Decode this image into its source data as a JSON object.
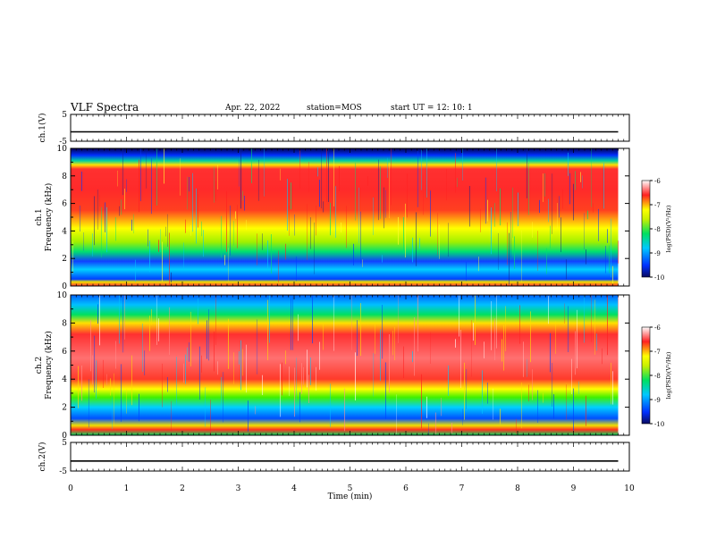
{
  "header": {
    "title": "VLF Spectra",
    "date": "Apr. 22, 2022",
    "station": "station=MOS",
    "start_ut": "start  UT =   12: 10: 1"
  },
  "chart_data": [
    {
      "type": "line",
      "name": "ch1-waveform",
      "ylabel": "ch.1(V)",
      "ylim": [
        -5,
        5
      ],
      "yticks": [
        "5",
        "-5"
      ],
      "xlim": [
        0,
        10
      ],
      "level": -1.5
    },
    {
      "type": "heatmap",
      "name": "ch1-spectrogram",
      "ylabel": "ch.1\nFrequency (kHz)",
      "ylim": [
        0,
        10
      ],
      "yticks": [
        "0",
        "2",
        "4",
        "6",
        "8",
        "10"
      ],
      "xlim": [
        0,
        10
      ],
      "data_end_min": 9.8,
      "colorbar": {
        "label": "log(PSD)(V²/Hz)",
        "range": [
          -10,
          -6
        ],
        "ticks": [
          "-6",
          "-7",
          "-8",
          "-9",
          "-10"
        ]
      }
    },
    {
      "type": "heatmap",
      "name": "ch2-spectrogram",
      "ylabel": "ch.2\nFrequency (kHz)",
      "ylim": [
        0,
        10
      ],
      "yticks": [
        "0",
        "2",
        "4",
        "6",
        "8",
        "10"
      ],
      "xlim": [
        0,
        10
      ],
      "data_end_min": 9.8,
      "colorbar": {
        "label": "log(PSD)(V²/Hz)",
        "range": [
          -10,
          -6
        ],
        "ticks": [
          "-6",
          "-7",
          "-8",
          "-9",
          "-10"
        ]
      }
    },
    {
      "type": "line",
      "name": "ch2-waveform",
      "ylabel": "ch.2(V)",
      "ylim": [
        -5,
        5
      ],
      "yticks": [
        "5",
        "-5"
      ],
      "xlim": [
        0,
        10
      ],
      "level": -1.5
    }
  ],
  "xaxis": {
    "label": "Time  (min)",
    "ticks": [
      "0",
      "1",
      "2",
      "3",
      "4",
      "5",
      "6",
      "7",
      "8",
      "9",
      "10"
    ]
  }
}
